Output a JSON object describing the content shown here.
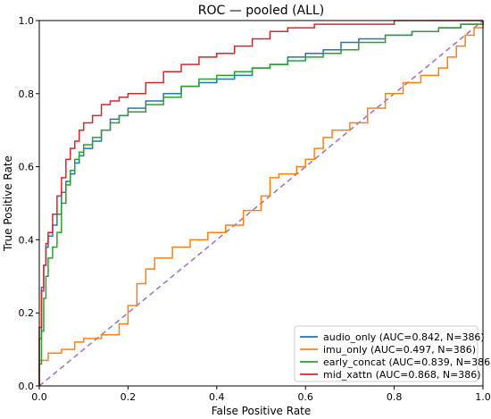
{
  "chart_data": {
    "type": "line",
    "title": "ROC — pooled (ALL)",
    "xlabel": "False Positive Rate",
    "ylabel": "True Positive Rate",
    "xlim": [
      0,
      1
    ],
    "ylim": [
      0,
      1
    ],
    "x_ticks": [
      "0.0",
      "0.2",
      "0.4",
      "0.6",
      "0.8",
      "1.0"
    ],
    "y_ticks": [
      "0.0",
      "0.2",
      "0.4",
      "0.6",
      "0.8",
      "1.0"
    ],
    "grid": false,
    "legend_position": "lower-right",
    "series": [
      {
        "name": "audio_only (AUC=0.842, N=386)",
        "color": "#1f77b4",
        "points": [
          [
            0,
            0
          ],
          [
            0,
            0.13
          ],
          [
            0.005,
            0.27
          ],
          [
            0.01,
            0.33
          ],
          [
            0.015,
            0.38
          ],
          [
            0.02,
            0.41
          ],
          [
            0.03,
            0.44
          ],
          [
            0.04,
            0.47
          ],
          [
            0.05,
            0.53
          ],
          [
            0.06,
            0.56
          ],
          [
            0.07,
            0.58
          ],
          [
            0.08,
            0.61
          ],
          [
            0.09,
            0.63
          ],
          [
            0.1,
            0.65
          ],
          [
            0.12,
            0.67
          ],
          [
            0.14,
            0.7
          ],
          [
            0.16,
            0.73
          ],
          [
            0.18,
            0.74
          ],
          [
            0.2,
            0.76
          ],
          [
            0.24,
            0.78
          ],
          [
            0.28,
            0.8
          ],
          [
            0.32,
            0.82
          ],
          [
            0.36,
            0.83
          ],
          [
            0.4,
            0.84
          ],
          [
            0.44,
            0.85
          ],
          [
            0.48,
            0.87
          ],
          [
            0.52,
            0.88
          ],
          [
            0.56,
            0.9
          ],
          [
            0.6,
            0.91
          ],
          [
            0.64,
            0.92
          ],
          [
            0.68,
            0.94
          ],
          [
            0.72,
            0.95
          ],
          [
            0.78,
            0.96
          ],
          [
            0.84,
            0.97
          ],
          [
            0.9,
            0.98
          ],
          [
            0.95,
            0.99
          ],
          [
            1,
            1
          ]
        ]
      },
      {
        "name": "imu_only (AUC=0.497, N=386)",
        "color": "#ff7f0e",
        "points": [
          [
            0,
            0
          ],
          [
            0,
            0.07
          ],
          [
            0.02,
            0.09
          ],
          [
            0.05,
            0.1
          ],
          [
            0.08,
            0.12
          ],
          [
            0.1,
            0.13
          ],
          [
            0.14,
            0.14
          ],
          [
            0.18,
            0.17
          ],
          [
            0.2,
            0.22
          ],
          [
            0.22,
            0.28
          ],
          [
            0.24,
            0.32
          ],
          [
            0.26,
            0.35
          ],
          [
            0.3,
            0.38
          ],
          [
            0.34,
            0.4
          ],
          [
            0.38,
            0.42
          ],
          [
            0.42,
            0.44
          ],
          [
            0.46,
            0.48
          ],
          [
            0.5,
            0.52
          ],
          [
            0.52,
            0.57
          ],
          [
            0.54,
            0.58
          ],
          [
            0.58,
            0.6
          ],
          [
            0.6,
            0.62
          ],
          [
            0.62,
            0.65
          ],
          [
            0.64,
            0.68
          ],
          [
            0.66,
            0.7
          ],
          [
            0.7,
            0.72
          ],
          [
            0.74,
            0.76
          ],
          [
            0.78,
            0.8
          ],
          [
            0.82,
            0.83
          ],
          [
            0.86,
            0.85
          ],
          [
            0.9,
            0.87
          ],
          [
            0.92,
            0.9
          ],
          [
            0.94,
            0.93
          ],
          [
            0.96,
            0.96
          ],
          [
            0.98,
            0.98
          ],
          [
            1,
            1
          ]
        ]
      },
      {
        "name": "early_concat (AUC=0.839, N=386)",
        "color": "#2ca02c",
        "points": [
          [
            0,
            0
          ],
          [
            0,
            0.06
          ],
          [
            0.005,
            0.15
          ],
          [
            0.01,
            0.24
          ],
          [
            0.015,
            0.3
          ],
          [
            0.02,
            0.35
          ],
          [
            0.03,
            0.38
          ],
          [
            0.04,
            0.42
          ],
          [
            0.05,
            0.5
          ],
          [
            0.06,
            0.55
          ],
          [
            0.07,
            0.59
          ],
          [
            0.08,
            0.62
          ],
          [
            0.09,
            0.64
          ],
          [
            0.1,
            0.66
          ],
          [
            0.12,
            0.68
          ],
          [
            0.14,
            0.7
          ],
          [
            0.16,
            0.72
          ],
          [
            0.18,
            0.74
          ],
          [
            0.2,
            0.75
          ],
          [
            0.24,
            0.77
          ],
          [
            0.28,
            0.79
          ],
          [
            0.32,
            0.82
          ],
          [
            0.36,
            0.84
          ],
          [
            0.4,
            0.85
          ],
          [
            0.44,
            0.86
          ],
          [
            0.48,
            0.87
          ],
          [
            0.52,
            0.88
          ],
          [
            0.56,
            0.89
          ],
          [
            0.6,
            0.9
          ],
          [
            0.64,
            0.91
          ],
          [
            0.68,
            0.92
          ],
          [
            0.72,
            0.94
          ],
          [
            0.78,
            0.96
          ],
          [
            0.84,
            0.97
          ],
          [
            0.9,
            0.98
          ],
          [
            0.95,
            0.99
          ],
          [
            1,
            1
          ]
        ]
      },
      {
        "name": "mid_xattn (AUC=0.868, N=386)",
        "color": "#d62728",
        "points": [
          [
            0,
            0
          ],
          [
            0,
            0.16
          ],
          [
            0.005,
            0.26
          ],
          [
            0.01,
            0.33
          ],
          [
            0.015,
            0.39
          ],
          [
            0.02,
            0.42
          ],
          [
            0.03,
            0.47
          ],
          [
            0.04,
            0.52
          ],
          [
            0.05,
            0.57
          ],
          [
            0.06,
            0.62
          ],
          [
            0.07,
            0.65
          ],
          [
            0.08,
            0.67
          ],
          [
            0.09,
            0.7
          ],
          [
            0.1,
            0.72
          ],
          [
            0.12,
            0.74
          ],
          [
            0.14,
            0.77
          ],
          [
            0.16,
            0.78
          ],
          [
            0.18,
            0.79
          ],
          [
            0.2,
            0.8
          ],
          [
            0.24,
            0.83
          ],
          [
            0.28,
            0.86
          ],
          [
            0.32,
            0.88
          ],
          [
            0.36,
            0.9
          ],
          [
            0.4,
            0.91
          ],
          [
            0.44,
            0.93
          ],
          [
            0.48,
            0.95
          ],
          [
            0.52,
            0.97
          ],
          [
            0.56,
            0.98
          ],
          [
            0.62,
            0.99
          ],
          [
            0.7,
            0.99
          ],
          [
            0.8,
            1
          ],
          [
            0.9,
            1
          ],
          [
            1,
            1
          ]
        ]
      }
    ],
    "reference_line": {
      "points": [
        [
          0,
          0
        ],
        [
          1,
          1
        ]
      ],
      "color": "#9467bd",
      "dash": true
    }
  }
}
